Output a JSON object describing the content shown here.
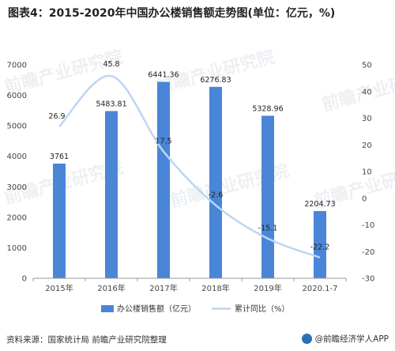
{
  "title": "图表4：2015-2020年中国办公楼销售额走势图(单位：亿元，%)",
  "source": "资料来源：国家统计局 前瞻产业研究院整理",
  "brand": {
    "text": "@前瞻经济学人APP",
    "icon": "qianzhan-logo-icon"
  },
  "watermark": "前瞻产业研究院",
  "colors": {
    "bar": "#4a86d8",
    "line": "#bcd6f1"
  },
  "chart_data": {
    "type": "bar",
    "categories": [
      "2015年",
      "2016年",
      "2017年",
      "2018年",
      "2019年",
      "2020.1-7"
    ],
    "series": [
      {
        "name": "办公楼销售额（亿元）",
        "type": "bar",
        "axis": "left",
        "values": [
          3761,
          5483.81,
          6441.36,
          6276.83,
          5328.96,
          2204.73
        ],
        "labels": [
          "3761",
          "5483.81",
          "6441.36",
          "6276.83",
          "5328.96",
          "2204.73"
        ]
      },
      {
        "name": "累计同比（%）",
        "type": "line",
        "axis": "right",
        "values": [
          26.9,
          45.8,
          17.5,
          -2.6,
          -15.1,
          -22.2
        ],
        "labels": [
          "26.9",
          "45.8",
          "17.5",
          "-2.6",
          "-15.1",
          "-22.2"
        ]
      }
    ],
    "y_left": {
      "min": 0,
      "max": 7000,
      "ticks": [
        "0",
        "1000",
        "2000",
        "3000",
        "4000",
        "5000",
        "6000",
        "7000"
      ]
    },
    "y_right": {
      "min": -30,
      "max": 50,
      "ticks": [
        "-30",
        "-20",
        "-10",
        "0",
        "10",
        "20",
        "30",
        "40",
        "50"
      ]
    },
    "grid": false,
    "legend": "bottom"
  }
}
